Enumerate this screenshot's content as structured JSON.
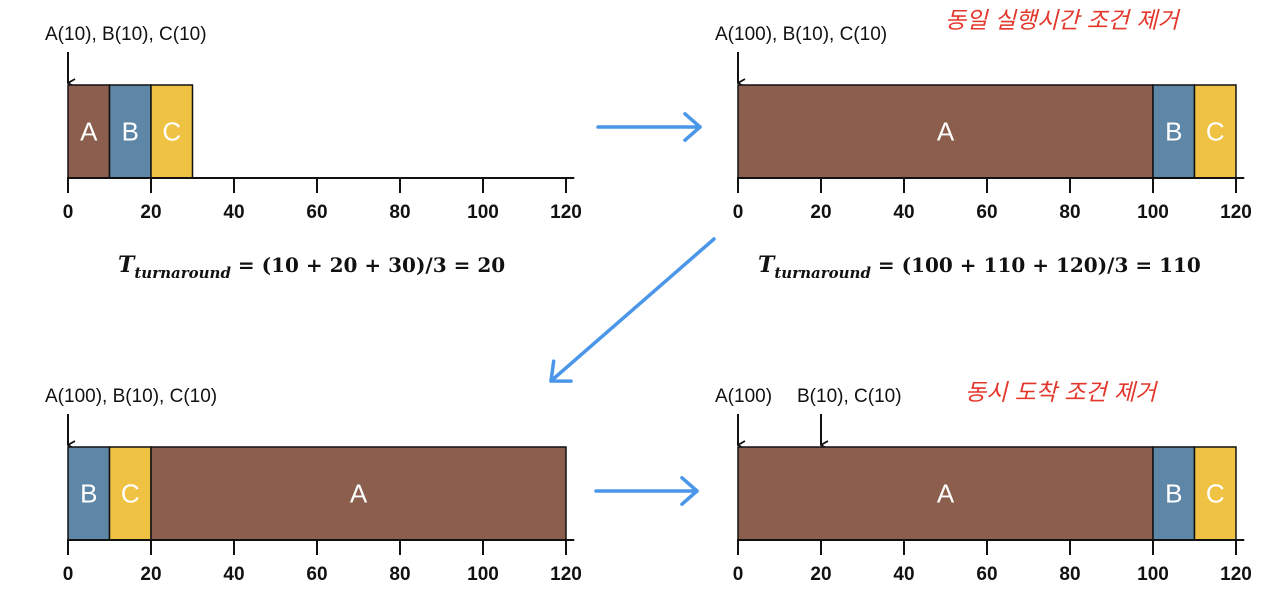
{
  "colors": {
    "A": "#8b5e4d",
    "B": "#5e86a6",
    "C": "#efc244",
    "arrow": "#4a96e8",
    "note": "#e3372b"
  },
  "axis_ticks": [
    "0",
    "20",
    "40",
    "60",
    "80",
    "100",
    "120"
  ],
  "panels": [
    {
      "id": "p1",
      "arrival_texts": [
        "A(10), B(10), C(10)"
      ],
      "arrivals_at": [
        0
      ],
      "note": "",
      "blocks": [
        {
          "label": "A",
          "job": "A",
          "start": 0,
          "end": 10
        },
        {
          "label": "B",
          "job": "B",
          "start": 10,
          "end": 20
        },
        {
          "label": "C",
          "job": "C",
          "start": 20,
          "end": 30
        }
      ],
      "formula": {
        "T": "T",
        "sub": "turnaround",
        "rhs": " = (10 + 20 + 30)/3 = 20"
      }
    },
    {
      "id": "p2",
      "arrival_texts": [
        "A(100), B(10), C(10)"
      ],
      "arrivals_at": [
        0
      ],
      "note": "동일 실행시간 조건 제거",
      "blocks": [
        {
          "label": "A",
          "job": "A",
          "start": 0,
          "end": 100
        },
        {
          "label": "B",
          "job": "B",
          "start": 100,
          "end": 110
        },
        {
          "label": "C",
          "job": "C",
          "start": 110,
          "end": 120
        }
      ],
      "formula": {
        "T": "T",
        "sub": "turnaround",
        "rhs": " = (100 + 110 + 120)/3 = 110"
      }
    },
    {
      "id": "p3",
      "arrival_texts": [
        "A(100), B(10), C(10)"
      ],
      "arrivals_at": [
        0
      ],
      "note": "",
      "blocks": [
        {
          "label": "B",
          "job": "B",
          "start": 0,
          "end": 10
        },
        {
          "label": "C",
          "job": "C",
          "start": 10,
          "end": 20
        },
        {
          "label": "A",
          "job": "A",
          "start": 20,
          "end": 120
        }
      ],
      "formula": null
    },
    {
      "id": "p4",
      "arrival_texts": [
        "A(100)",
        "B(10), C(10)"
      ],
      "arrivals_at": [
        0,
        20
      ],
      "note": "동시 도착 조건 제거",
      "blocks": [
        {
          "label": "A",
          "job": "A",
          "start": 0,
          "end": 100
        },
        {
          "label": "B",
          "job": "B",
          "start": 100,
          "end": 110
        },
        {
          "label": "C",
          "job": "C",
          "start": 110,
          "end": 120
        }
      ],
      "formula": null
    }
  ]
}
